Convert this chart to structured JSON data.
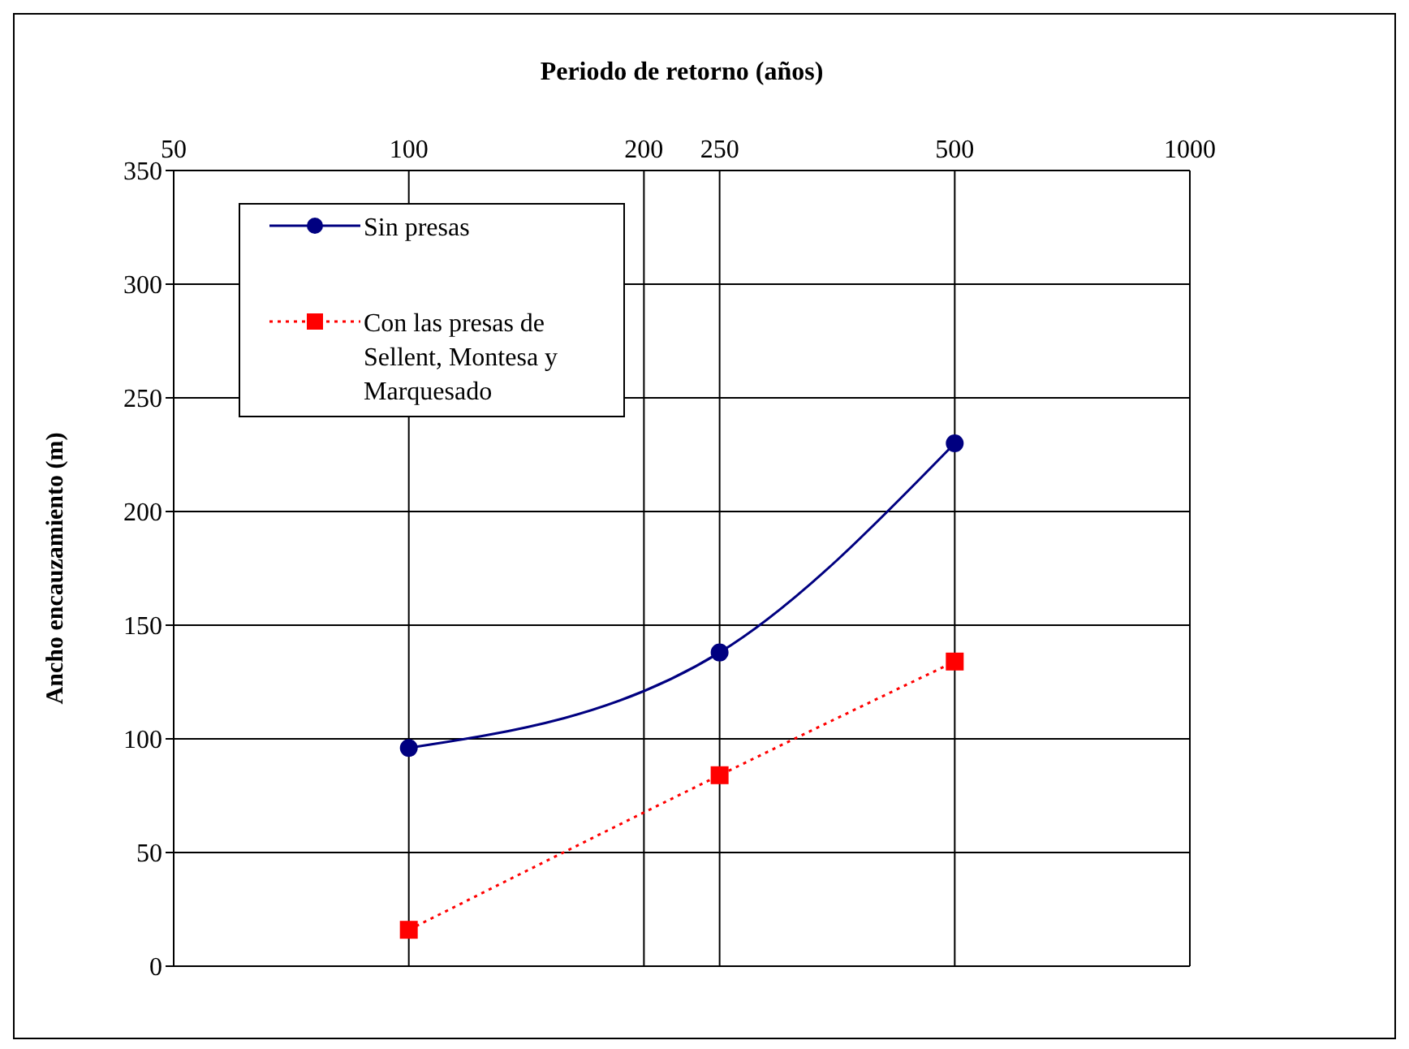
{
  "chart_data": {
    "type": "line",
    "xlabel": "Periodo de retorno (años)",
    "ylabel": "Ancho encauzamiento (m)",
    "log": "x",
    "xlim": [
      50,
      1000
    ],
    "xticks": [
      50,
      100,
      200,
      250,
      500,
      1000
    ],
    "ylim": [
      0,
      350
    ],
    "yticks": [
      0,
      50,
      100,
      150,
      200,
      250,
      300,
      350
    ],
    "grid": true,
    "legend": "top left",
    "series": [
      {
        "name": "Sin presas",
        "color": "#000080",
        "x": [
          100,
          250,
          500
        ],
        "values": [
          96,
          138,
          230
        ],
        "marker": "circle",
        "line_style": "solid"
      },
      {
        "name": "Con las presas de Sellent, Montesa y Marquesado",
        "color": "#ff0000",
        "x": [
          100,
          250,
          500
        ],
        "values": [
          16,
          84,
          134
        ],
        "marker": "square",
        "line_style": "dotted"
      }
    ]
  }
}
